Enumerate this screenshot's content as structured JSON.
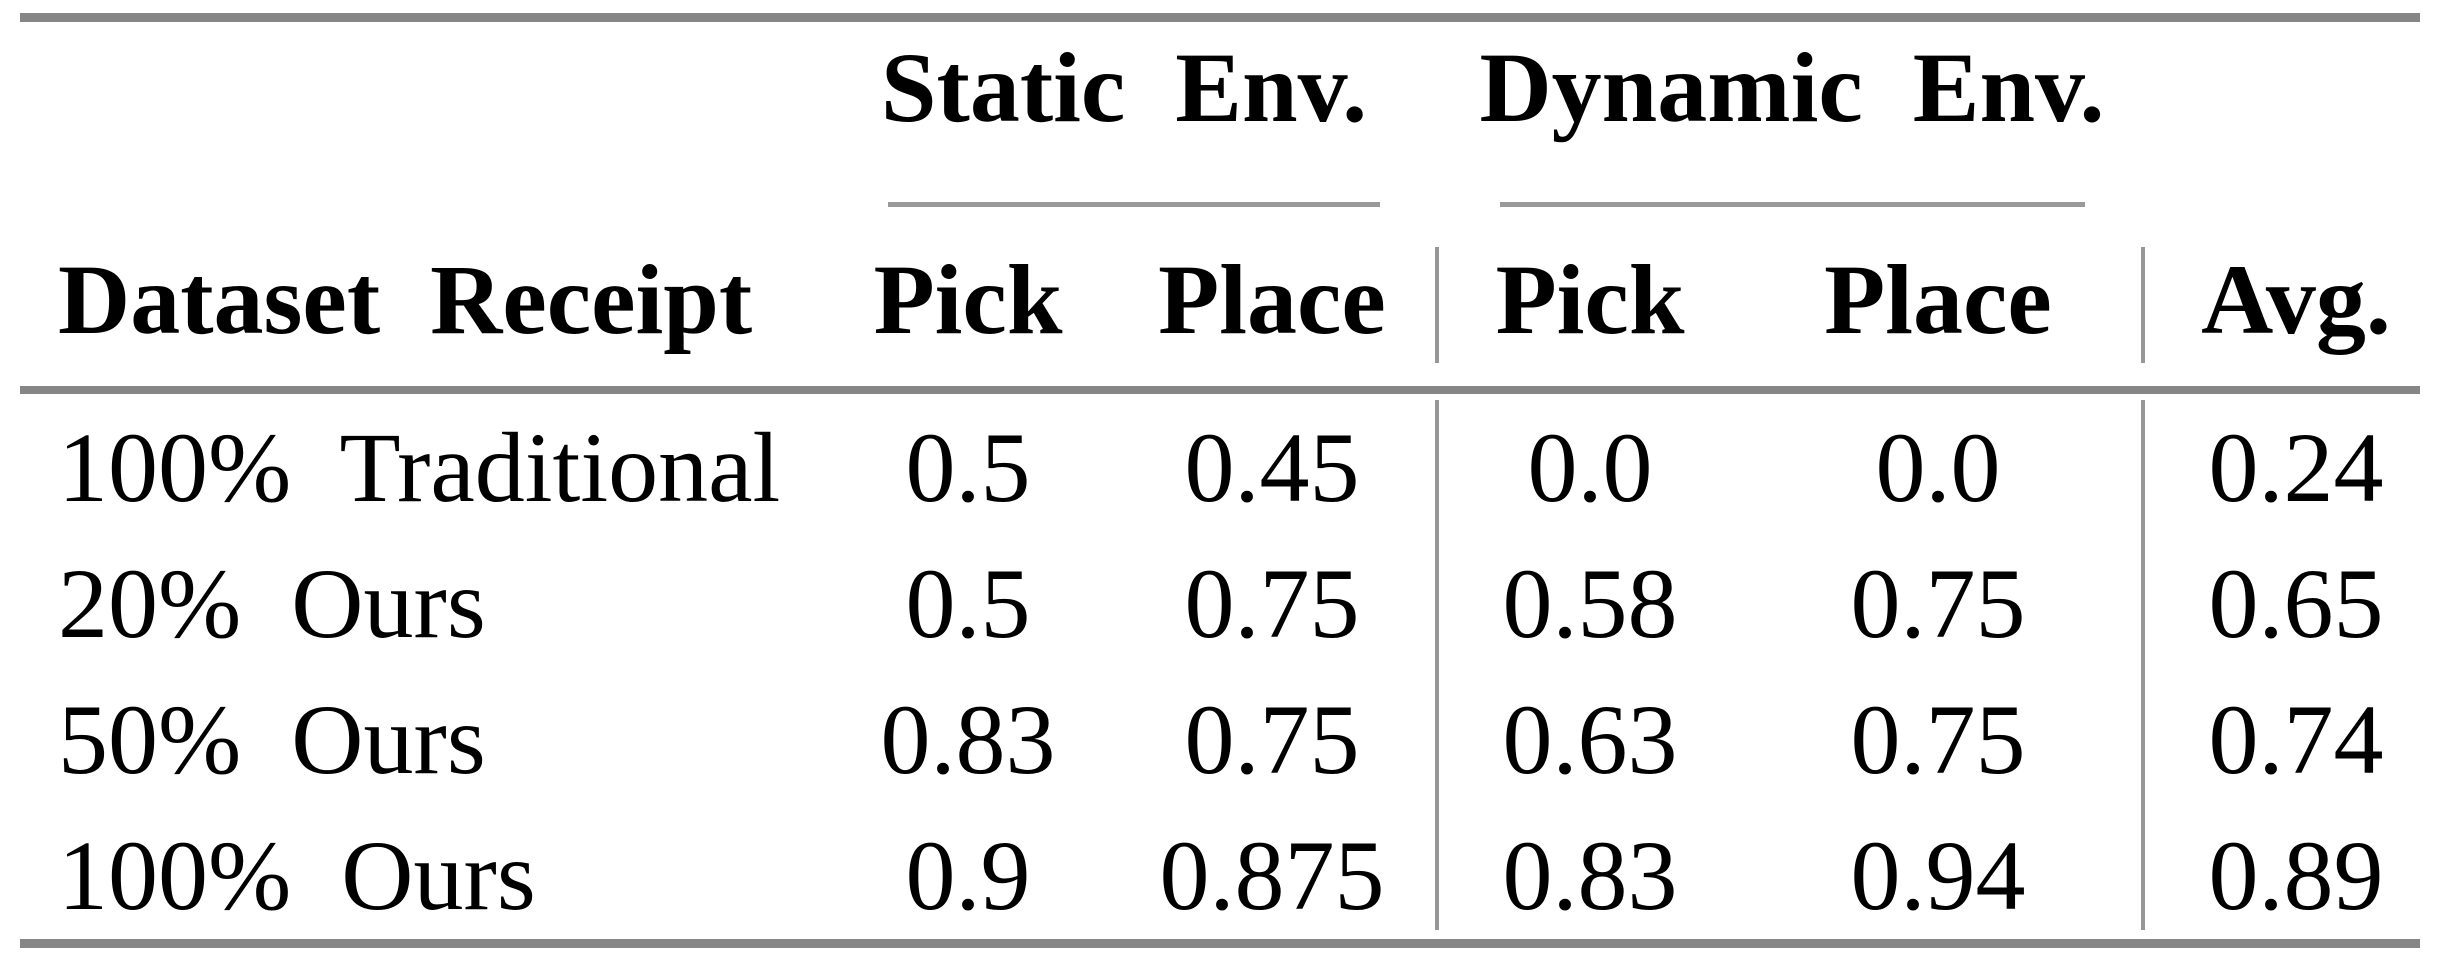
{
  "colors": {
    "thick_rule": "#868686",
    "thin_rule": "#9a9a9a",
    "divider": "#979797",
    "text": "#000000",
    "background": "#ffffff"
  },
  "table": {
    "groups": [
      {
        "label": "Static Env."
      },
      {
        "label": "Dynamic Env."
      }
    ],
    "headers": {
      "row_label": "Dataset Receipt",
      "static_pick": "Pick",
      "static_place": "Place",
      "dynamic_pick": "Pick",
      "dynamic_place": "Place",
      "avg": "Avg."
    },
    "rows": [
      {
        "label": "100% Traditional",
        "static_pick": "0.5",
        "static_place": "0.45",
        "dynamic_pick": "0.0",
        "dynamic_place": "0.0",
        "avg": "0.24"
      },
      {
        "label": "20% Ours",
        "static_pick": "0.5",
        "static_place": "0.75",
        "dynamic_pick": "0.58",
        "dynamic_place": "0.75",
        "avg": "0.65"
      },
      {
        "label": "50% Ours",
        "static_pick": "0.83",
        "static_place": "0.75",
        "dynamic_pick": "0.63",
        "dynamic_place": "0.75",
        "avg": "0.74"
      },
      {
        "label": "100% Ours",
        "static_pick": "0.9",
        "static_place": "0.875",
        "dynamic_pick": "0.83",
        "dynamic_place": "0.94",
        "avg": "0.89"
      }
    ]
  },
  "chart_data": {
    "type": "table",
    "columns": [
      "Dataset Receipt",
      "Static Env. Pick",
      "Static Env. Place",
      "Dynamic Env. Pick",
      "Dynamic Env. Place",
      "Avg."
    ],
    "rows": [
      [
        "100% Traditional",
        0.5,
        0.45,
        0.0,
        0.0,
        0.24
      ],
      [
        "20% Ours",
        0.5,
        0.75,
        0.58,
        0.75,
        0.65
      ],
      [
        "50% Ours",
        0.83,
        0.75,
        0.63,
        0.75,
        0.74
      ],
      [
        "100% Ours",
        0.9,
        0.875,
        0.83,
        0.94,
        0.89
      ]
    ]
  }
}
